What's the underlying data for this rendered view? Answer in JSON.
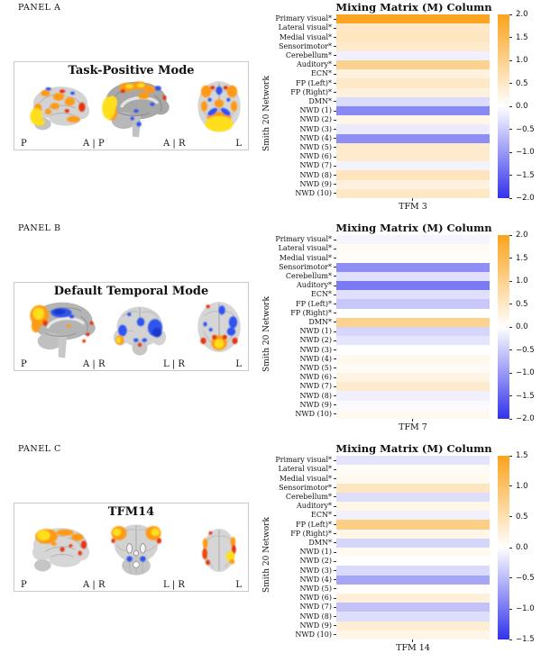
{
  "colors": {
    "positive_max": "#FBA31C",
    "negative_min": "#3232EC",
    "zero": "#FFFFFF",
    "yellow_activation": "#FFDF1E",
    "orange_activation": "#FF9A12",
    "red_activation": "#E8350F",
    "blue_activation": "#2E55F0"
  },
  "panels": [
    {
      "label": "PANEL A",
      "brain_title": "Task-Positive Mode",
      "orientation_labels": [
        "P",
        "A | P",
        "A | R",
        "L"
      ]
    },
    {
      "label": "PANEL B",
      "brain_title": "Default Temporal Mode",
      "orientation_labels": [
        "P",
        "A | R",
        "L | R",
        "L"
      ]
    },
    {
      "label": "PANEL C",
      "brain_title": "TFM14",
      "orientation_labels": [
        "P",
        "A | R",
        "L | R",
        "L"
      ]
    }
  ],
  "chart_data": [
    {
      "type": "heatmap",
      "title": "Mixing Matrix (M) Column",
      "xlabel": "TFM 3",
      "ylabel": "Smith 20 Network",
      "columns": [
        "TFM 3"
      ],
      "rows": [
        "Primary visual*",
        "Lateral visual*",
        "Medial visual*",
        "Sensorimotor*",
        "Cerebellum*",
        "Auditory*",
        "ECN*",
        "FP (Left)*",
        "FP (Right)*",
        "DMN*",
        "NWD (1)",
        "NWD (2)",
        "NWD (3)",
        "NWD (4)",
        "NWD (5)",
        "NWD (6)",
        "NWD (7)",
        "NWD (8)",
        "NWD (9)",
        "NWD (10)"
      ],
      "values": [
        1.95,
        0.5,
        0.55,
        0.45,
        -0.15,
        1.0,
        0.3,
        0.5,
        0.3,
        -0.35,
        -1.15,
        0.2,
        -0.2,
        -1.1,
        0.45,
        0.45,
        -0.12,
        0.6,
        0.3,
        0.5
      ],
      "vmin": -2.0,
      "vmax": 2.0,
      "colorbar_ticks": [
        "2.0",
        "1.5",
        "1.0",
        "0.5",
        "0.0",
        "−0.5",
        "−1.0",
        "−1.5",
        "−2.0"
      ],
      "legend_position": "right",
      "grid": false
    },
    {
      "type": "heatmap",
      "title": "Mixing Matrix (M) Column",
      "xlabel": "TFM 7",
      "ylabel": "Smith 20 Network",
      "columns": [
        "TFM 7"
      ],
      "rows": [
        "Primary visual*",
        "Lateral visual*",
        "Medial visual*",
        "Sensorimotor*",
        "Cerebellum*",
        "Auditory*",
        "ECN*",
        "FP (Left)*",
        "FP (Right)*",
        "DMN*",
        "NWD (1)",
        "NWD (2)",
        "NWD (3)",
        "NWD (4)",
        "NWD (5)",
        "NWD (6)",
        "NWD (7)",
        "NWD (8)",
        "NWD (9)",
        "NWD (10)"
      ],
      "values": [
        -0.1,
        0.1,
        0.05,
        -1.1,
        -0.3,
        -1.3,
        -0.3,
        -0.55,
        0.0,
        1.0,
        -0.4,
        -0.25,
        0.0,
        0.15,
        0.1,
        0.25,
        0.45,
        -0.15,
        -0.05,
        0.15
      ],
      "vmin": -2.0,
      "vmax": 2.0,
      "colorbar_ticks": [
        "2.0",
        "1.5",
        "1.0",
        "0.5",
        "0.0",
        "−0.5",
        "−1.0",
        "−1.5",
        "−2.0"
      ],
      "legend_position": "right",
      "grid": false
    },
    {
      "type": "heatmap",
      "title": "Mixing Matrix (M) Column",
      "xlabel": "TFM 14",
      "ylabel": "Smith 20 Network",
      "columns": [
        "TFM 14"
      ],
      "rows": [
        "Primary visual*",
        "Lateral visual*",
        "Medial visual*",
        "Sensorimotor*",
        "Cerebellum*",
        "Auditory*",
        "ECN*",
        "FP (Left)*",
        "FP (Right)*",
        "DMN*",
        "NWD (1)",
        "NWD (2)",
        "NWD (3)",
        "NWD (4)",
        "NWD (5)",
        "NWD (6)",
        "NWD (7)",
        "NWD (8)",
        "NWD (9)",
        "NWD (10)"
      ],
      "values": [
        -0.2,
        0.05,
        0.1,
        0.4,
        -0.25,
        0.15,
        -0.1,
        0.8,
        0.15,
        -0.3,
        0.1,
        0.0,
        -0.28,
        -0.65,
        0.02,
        0.25,
        -0.45,
        -0.25,
        0.28,
        0.15
      ],
      "vmin": -1.5,
      "vmax": 1.5,
      "colorbar_ticks": [
        "1.5",
        "1.0",
        "0.5",
        "0.0",
        "−0.5",
        "−1.0",
        "−1.5"
      ],
      "legend_position": "right",
      "grid": false
    }
  ]
}
